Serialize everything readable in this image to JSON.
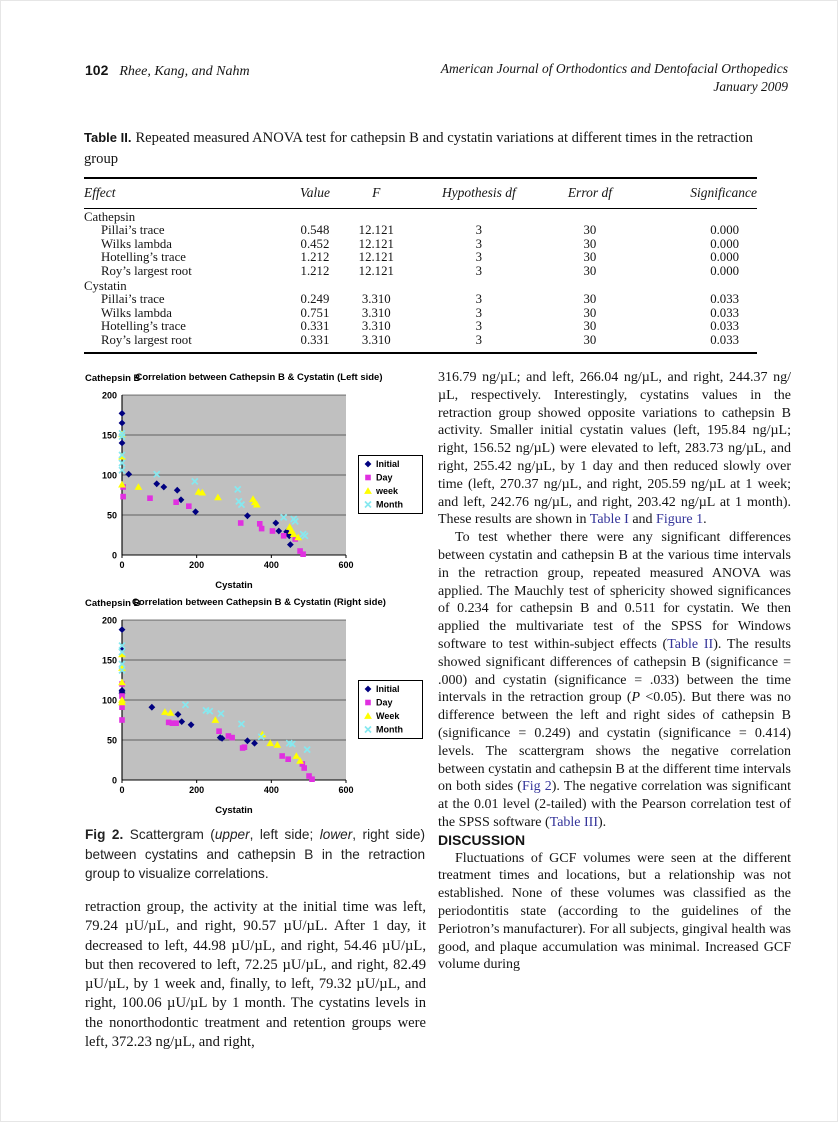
{
  "page": {
    "number": "102",
    "running_authors": "Rhee, Kang, and Nahm",
    "journal": "American Journal of Orthodontics and Dentofacial Orthopedics",
    "issue": "January 2009"
  },
  "table2": {
    "label": "Table II.",
    "title": "Repeated measured ANOVA test for cathepsin B and cystatin variations at different times in the retraction group",
    "columns": [
      "Effect",
      "Value",
      "F",
      "Hypothesis df",
      "Error df",
      "Significance"
    ],
    "groups": [
      {
        "name": "Cathepsin",
        "rows": [
          [
            "Pillai’s trace",
            "0.548",
            "12.121",
            "3",
            "30",
            "0.000"
          ],
          [
            "Wilks lambda",
            "0.452",
            "12.121",
            "3",
            "30",
            "0.000"
          ],
          [
            "Hotelling’s trace",
            "1.212",
            "12.121",
            "3",
            "30",
            "0.000"
          ],
          [
            "Roy’s largest root",
            "1.212",
            "12.121",
            "3",
            "30",
            "0.000"
          ]
        ]
      },
      {
        "name": "Cystatin",
        "rows": [
          [
            "Pillai’s trace",
            "0.249",
            "3.310",
            "3",
            "30",
            "0.033"
          ],
          [
            "Wilks lambda",
            "0.751",
            "3.310",
            "3",
            "30",
            "0.033"
          ],
          [
            "Hotelling’s trace",
            "0.331",
            "3.310",
            "3",
            "30",
            "0.033"
          ],
          [
            "Roy’s largest root",
            "0.331",
            "3.310",
            "3",
            "30",
            "0.033"
          ]
        ]
      }
    ]
  },
  "chart_data": [
    {
      "type": "scatter",
      "title": "Correlation between Cathepsin B & Cystatin (Left side)",
      "corner_label": "Cathepsin B",
      "xlabel": "Cystatin",
      "ylabel": "Cathepsin B",
      "xlim": [
        0,
        600
      ],
      "ylim": [
        0,
        200
      ],
      "xticks": [
        0,
        200,
        400,
        600
      ],
      "yticks": [
        0,
        50,
        100,
        150,
        200
      ],
      "plot_bg": "#c0c0c0",
      "grid": true,
      "legend_position": "right",
      "series": [
        {
          "name": "Initial",
          "marker": "diamond",
          "color": "#000080",
          "points": [
            [
              0,
              177
            ],
            [
              0,
              165
            ],
            [
              0,
              140
            ],
            [
              18,
              101
            ],
            [
              93,
              89
            ],
            [
              112,
              85
            ],
            [
              148,
              81
            ],
            [
              158,
              69
            ],
            [
              197,
              54
            ],
            [
              336,
              49
            ],
            [
              412,
              40
            ],
            [
              420,
              30
            ],
            [
              441,
              29
            ],
            [
              448,
              24
            ],
            [
              451,
              13
            ]
          ]
        },
        {
          "name": "Day",
          "marker": "square",
          "color": "#e030e0",
          "points": [
            [
              3,
              85
            ],
            [
              3,
              73
            ],
            [
              75,
              71
            ],
            [
              145,
              66
            ],
            [
              179,
              61
            ],
            [
              318,
              40
            ],
            [
              369,
              39
            ],
            [
              374,
              33
            ],
            [
              403,
              30
            ],
            [
              433,
              24
            ],
            [
              464,
              20
            ],
            [
              477,
              5
            ],
            [
              485,
              1
            ]
          ]
        },
        {
          "name": "week",
          "marker": "triangle",
          "color": "#ffff00",
          "points": [
            [
              0,
              151
            ],
            [
              0,
              123
            ],
            [
              0,
              88
            ],
            [
              44,
              85
            ],
            [
              205,
              79
            ],
            [
              215,
              78
            ],
            [
              257,
              72
            ],
            [
              351,
              70
            ],
            [
              356,
              66
            ],
            [
              361,
              63
            ],
            [
              449,
              35
            ],
            [
              454,
              30
            ],
            [
              460,
              26
            ],
            [
              472,
              22
            ]
          ]
        },
        {
          "name": "Month",
          "marker": "x",
          "color": "#86e8ef",
          "points": [
            [
              0,
              152
            ],
            [
              0,
              148
            ],
            [
              0,
              125
            ],
            [
              0,
              115
            ],
            [
              0,
              106
            ],
            [
              93,
              101
            ],
            [
              195,
              92
            ],
            [
              310,
              82
            ],
            [
              313,
              67
            ],
            [
              320,
              63
            ],
            [
              433,
              47
            ],
            [
              460,
              45
            ],
            [
              464,
              42
            ],
            [
              485,
              26
            ],
            [
              490,
              24
            ]
          ]
        }
      ]
    },
    {
      "type": "scatter",
      "title": "Correlation between Cathepsin B & Cystatin (Right side)",
      "corner_label": "Cathepsin B",
      "xlabel": "Cystatin",
      "ylabel": "Cathepsin B",
      "xlim": [
        0,
        600
      ],
      "ylim": [
        0,
        200
      ],
      "xticks": [
        0,
        200,
        400,
        600
      ],
      "yticks": [
        0,
        50,
        100,
        150,
        200
      ],
      "plot_bg": "#c0c0c0",
      "grid": true,
      "legend_position": "right",
      "series": [
        {
          "name": "Initial",
          "marker": "diamond",
          "color": "#000080",
          "points": [
            [
              0,
              188
            ],
            [
              0,
              163
            ],
            [
              0,
              112
            ],
            [
              0,
              110
            ],
            [
              0,
              108
            ],
            [
              80,
              91
            ],
            [
              150,
              82
            ],
            [
              160,
              73
            ],
            [
              185,
              69
            ],
            [
              263,
              53
            ],
            [
              268,
              52
            ],
            [
              336,
              49
            ],
            [
              355,
              46
            ]
          ]
        },
        {
          "name": "Day",
          "marker": "square",
          "color": "#e030e0",
          "points": [
            [
              0,
              120
            ],
            [
              0,
              105
            ],
            [
              0,
              91
            ],
            [
              0,
              75
            ],
            [
              125,
              72
            ],
            [
              135,
              71
            ],
            [
              145,
              71
            ],
            [
              260,
              61
            ],
            [
              285,
              55
            ],
            [
              295,
              53
            ],
            [
              323,
              40
            ],
            [
              328,
              41
            ],
            [
              429,
              30
            ],
            [
              445,
              26
            ],
            [
              483,
              20
            ],
            [
              488,
              15
            ],
            [
              501,
              5
            ],
            [
              509,
              1
            ]
          ]
        },
        {
          "name": "Week",
          "marker": "triangle",
          "color": "#ffff00",
          "points": [
            [
              0,
              157
            ],
            [
              0,
              140
            ],
            [
              0,
              122
            ],
            [
              0,
              100
            ],
            [
              0,
              97
            ],
            [
              115,
              85
            ],
            [
              130,
              84
            ],
            [
              250,
              75
            ],
            [
              376,
              57
            ],
            [
              397,
              46
            ],
            [
              416,
              44
            ],
            [
              467,
              30
            ],
            [
              477,
              24
            ]
          ]
        },
        {
          "name": "Month",
          "marker": "x",
          "color": "#86e8ef",
          "points": [
            [
              0,
              168
            ],
            [
              0,
              160
            ],
            [
              0,
              145
            ],
            [
              0,
              137
            ],
            [
              170,
              94
            ],
            [
              225,
              87
            ],
            [
              235,
              86
            ],
            [
              265,
              83
            ],
            [
              320,
              70
            ],
            [
              373,
              54
            ],
            [
              448,
              46
            ],
            [
              456,
              45
            ],
            [
              496,
              38
            ]
          ]
        }
      ]
    }
  ],
  "figure": {
    "caption_label": "Fig 2.",
    "caption_segments": [
      {
        "t": " Scattergram ("
      },
      {
        "t": "upper",
        "i": true
      },
      {
        "t": ", left side; "
      },
      {
        "t": "lower",
        "i": true
      },
      {
        "t": ", right side) between cystatins and cathepsin B in the retraction group to visualize correlations."
      }
    ]
  },
  "left_column": {
    "paragraph": "retraction group, the activity at the initial time was left, 79.24 µU/µL, and right, 90.57 µU/µL. After 1 day, it decreased to left, 44.98 µU/µL, and right, 54.46 µU/µL, but then recovered to left, 72.25 µU/µL, and right, 82.49 µU/µL, by 1 week and, finally, to left, 79.32 µU/µL, and right, 100.06 µU/µL by 1 month. The cystatins levels in the nonorthodontic treatment and retention groups were left, 372.23 ng/µL, and right,"
  },
  "right_column": {
    "p1_segments": [
      {
        "t": "316.79 ng/µL; and left, 266.04 ng/µL, and right, 244.37 ng/µL, respectively. Interestingly, cystatins values in the retraction group showed opposite variations to cathepsin B activity. Smaller initial cystatin values (left, 195.84 ng/µL; right, 156.52 ng/µL) were elevated to left, 283.73 ng/µL, and right, 255.42 ng/µL, by 1 day and then reduced slowly over time (left, 270.37 ng/µL, and right, 205.59 ng/µL at 1 week; and left, 242.76 ng/µL, and right, 203.42 ng/µL at 1 month). These results are shown in "
      },
      {
        "t": "Table I",
        "link": true,
        "name": "link-table-1"
      },
      {
        "t": " and "
      },
      {
        "t": "Figure 1",
        "link": true,
        "name": "link-figure-1"
      },
      {
        "t": "."
      }
    ],
    "p2_segments": [
      {
        "t": "To test whether there were any significant differences between cystatin and cathepsin B at the various time intervals in the retraction group, repeated measured ANOVA was applied. The Mauchly test of sphericity showed significances of 0.234 for cathepsin B and 0.511 for cystatin. We then applied the multivariate test of the SPSS for Windows software to test within-subject effects ("
      },
      {
        "t": "Table II",
        "link": true,
        "name": "link-table-2"
      },
      {
        "t": "). The results showed significant differences of cathepsin B (significance = .000) and cystatin (significance = .033) between the time intervals in the retraction group ("
      },
      {
        "t": "P",
        "i": true
      },
      {
        "t": " <0.05). But there was no difference between the left and right sides of cathepsin B (significance = 0.249) and cystatin (significance = 0.414) levels. The scattergram shows the negative correlation between cystatin and cathepsin B at the different time intervals on both sides ("
      },
      {
        "t": "Fig 2",
        "link": true,
        "name": "link-fig-2"
      },
      {
        "t": "). The negative correlation was significant at the 0.01 level (2-tailed) with the Pearson correlation test of the SPSS software ("
      },
      {
        "t": "Table III",
        "link": true,
        "name": "link-table-3"
      },
      {
        "t": ")."
      }
    ],
    "discussion_heading": "DISCUSSION",
    "p3": "Fluctuations of GCF volumes were seen at the different treatment times and locations, but a relationship was not established. None of these volumes was classified as the periodontitis state (according to the guidelines of the Periotron’s manufacturer). For all subjects, gingival health was good, and plaque accumulation was minimal. Increased GCF volume during"
  }
}
